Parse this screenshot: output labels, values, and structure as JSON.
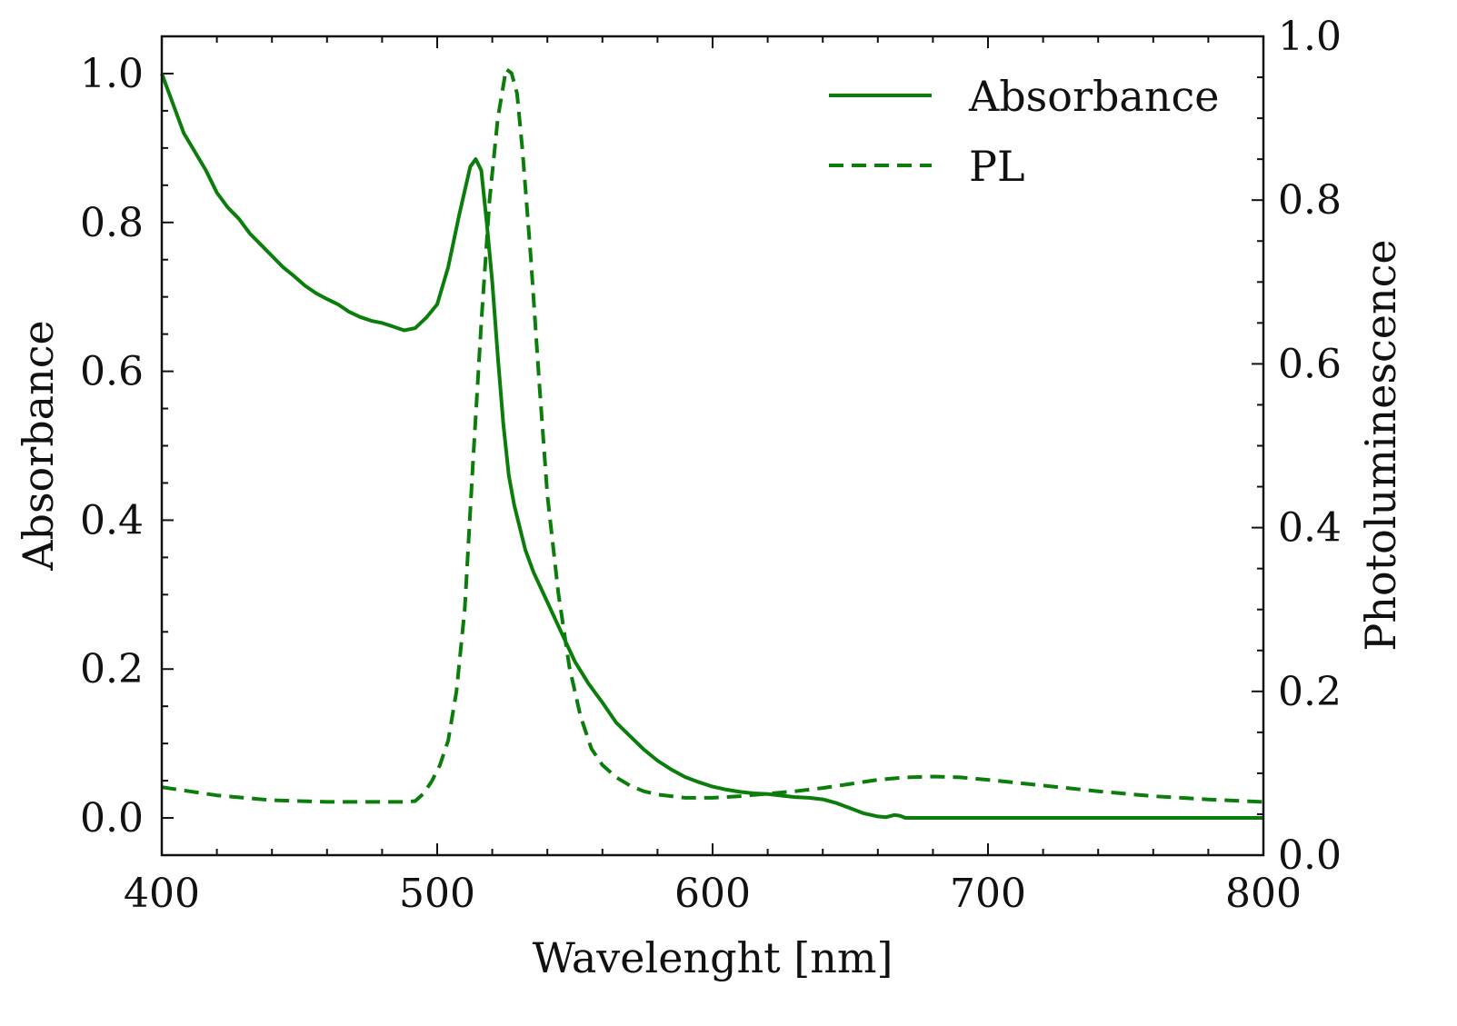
{
  "chart_data": {
    "type": "line",
    "title": "",
    "xlabel": "Wavelenght [nm]",
    "ylabel_left": "Absorbance",
    "ylabel_right": "Photoluminescence",
    "xlim": [
      400,
      800
    ],
    "ylim_left": [
      -0.05,
      1.05
    ],
    "ylim_right": [
      0.0,
      1.0
    ],
    "x_ticks": [
      "400",
      "500",
      "600",
      "700",
      "800"
    ],
    "y_left_ticks": [
      "0.0",
      "0.2",
      "0.4",
      "0.6",
      "0.8",
      "1.0"
    ],
    "y_right_ticks": [
      "0.0",
      "0.2",
      "0.4",
      "0.6",
      "0.8",
      "1.0"
    ],
    "grid": false,
    "legend_position": "top-right",
    "color": "#0a7d0a",
    "series": [
      {
        "name": "Absorbance",
        "axis": "left",
        "style": "solid",
        "x": [
          400,
          404,
          408,
          412,
          416,
          420,
          424,
          428,
          432,
          436,
          440,
          444,
          448,
          452,
          456,
          460,
          464,
          468,
          472,
          476,
          480,
          484,
          488,
          492,
          496,
          500,
          504,
          508,
          512,
          514,
          516,
          518,
          520,
          522,
          524,
          526,
          528,
          530,
          532,
          535,
          540,
          545,
          550,
          555,
          560,
          565,
          570,
          575,
          580,
          585,
          590,
          595,
          600,
          605,
          610,
          615,
          620,
          625,
          630,
          635,
          640,
          645,
          650,
          655,
          660,
          663,
          666,
          668,
          670,
          675,
          680,
          700,
          720,
          740,
          760,
          780,
          800
        ],
        "values": [
          1.0,
          0.96,
          0.92,
          0.895,
          0.87,
          0.84,
          0.82,
          0.805,
          0.785,
          0.77,
          0.755,
          0.74,
          0.728,
          0.715,
          0.705,
          0.697,
          0.69,
          0.68,
          0.673,
          0.668,
          0.665,
          0.66,
          0.655,
          0.658,
          0.672,
          0.69,
          0.74,
          0.81,
          0.875,
          0.885,
          0.87,
          0.8,
          0.72,
          0.62,
          0.53,
          0.46,
          0.42,
          0.39,
          0.36,
          0.33,
          0.29,
          0.25,
          0.21,
          0.18,
          0.155,
          0.128,
          0.11,
          0.092,
          0.077,
          0.065,
          0.055,
          0.048,
          0.042,
          0.038,
          0.035,
          0.033,
          0.032,
          0.03,
          0.028,
          0.027,
          0.025,
          0.02,
          0.013,
          0.006,
          0.002,
          0.001,
          0.004,
          0.003,
          0.0,
          0.0,
          0.0,
          0.0,
          0.0,
          0.0,
          0.0,
          0.0,
          0.0
        ]
      },
      {
        "name": "PL",
        "axis": "right",
        "style": "dashed",
        "x": [
          400,
          410,
          420,
          430,
          440,
          450,
          460,
          470,
          480,
          488,
          492,
          495,
          498,
          501,
          504,
          507,
          510,
          513,
          516,
          519,
          522,
          525,
          527,
          529,
          531,
          534,
          537,
          540,
          544,
          548,
          552,
          556,
          560,
          565,
          570,
          575,
          580,
          590,
          600,
          610,
          620,
          630,
          640,
          650,
          660,
          670,
          680,
          690,
          700,
          720,
          740,
          760,
          780,
          800
        ],
        "values": [
          0.083,
          0.078,
          0.073,
          0.07,
          0.067,
          0.066,
          0.065,
          0.065,
          0.065,
          0.065,
          0.066,
          0.075,
          0.09,
          0.11,
          0.14,
          0.2,
          0.3,
          0.48,
          0.65,
          0.8,
          0.9,
          0.96,
          0.955,
          0.93,
          0.86,
          0.73,
          0.58,
          0.44,
          0.32,
          0.23,
          0.17,
          0.13,
          0.11,
          0.095,
          0.085,
          0.078,
          0.074,
          0.07,
          0.07,
          0.072,
          0.075,
          0.078,
          0.082,
          0.087,
          0.092,
          0.095,
          0.096,
          0.095,
          0.092,
          0.085,
          0.078,
          0.072,
          0.068,
          0.065
        ]
      }
    ]
  }
}
